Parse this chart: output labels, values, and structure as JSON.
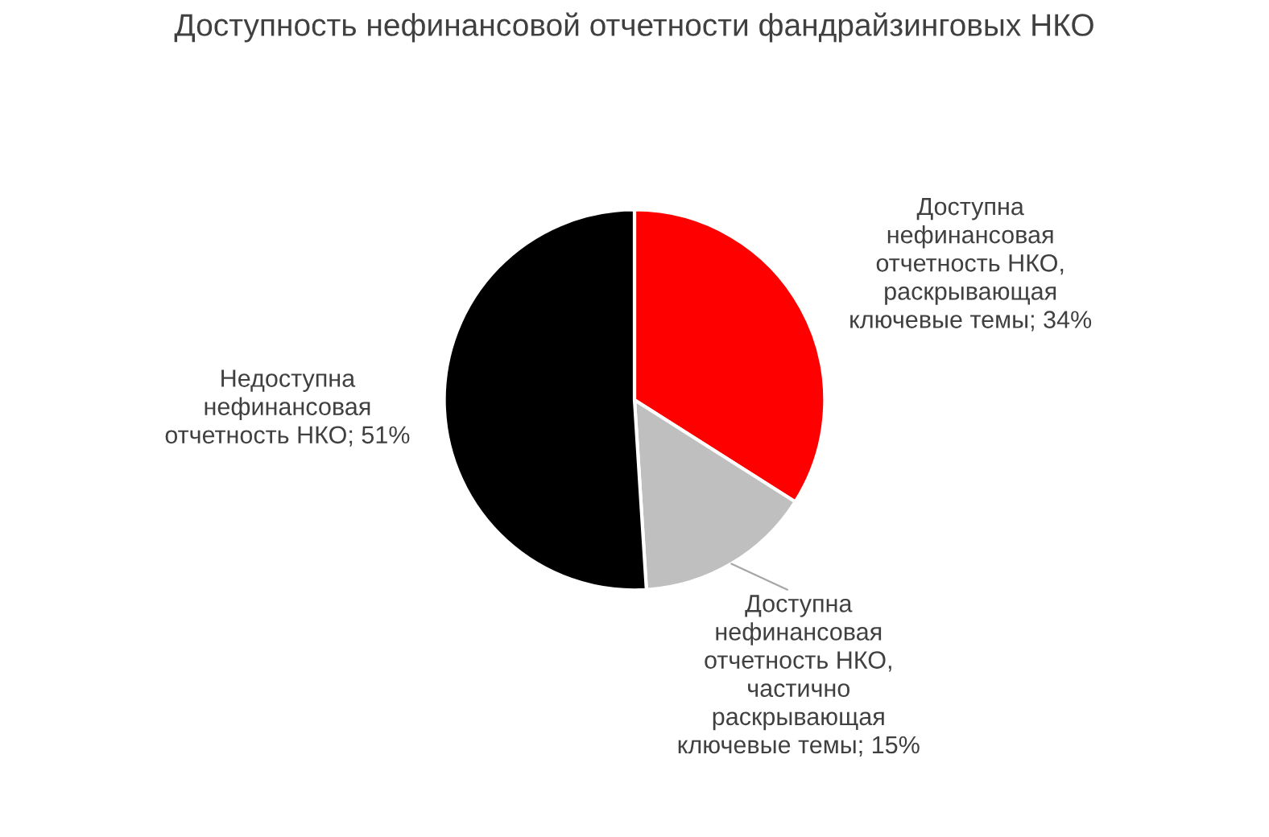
{
  "chart_data": {
    "type": "pie",
    "title": "Доступность нефинансовой отчетности фандрайзинговых НКО",
    "categories": [
      "Доступна\nнефинансовая\nотчетность НКО,\nраскрывающая\nключевые темы",
      "Доступна\nнефинансовая\nотчетность НКО,\nчастично\nраскрывающая\nключевые темы",
      "Недоступна\nнефинансовая\nотчетность НКО"
    ],
    "values": [
      34,
      15,
      51
    ],
    "value_labels": [
      "34%",
      "15%",
      "51%"
    ],
    "colors": [
      "#ff0000",
      "#bfbfbf",
      "#000000"
    ],
    "legend": false
  }
}
